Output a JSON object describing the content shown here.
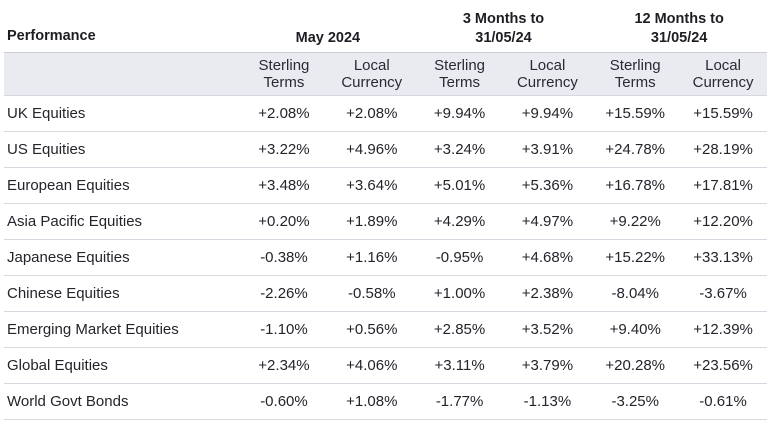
{
  "table": {
    "title": "Performance",
    "groups": [
      "May 2024",
      "3 Months to\n31/05/24",
      "12 Months to\n31/05/24"
    ],
    "subheaders": [
      [
        "Sterling",
        "Terms"
      ],
      [
        "Local",
        "Currency"
      ],
      [
        "Sterling",
        "Terms"
      ],
      [
        "Local",
        "Currency"
      ],
      [
        "Sterling",
        "Terms"
      ],
      [
        "Local",
        "Currency"
      ]
    ],
    "rows": [
      {
        "label": "UK Equities",
        "values": [
          "+2.08%",
          "+2.08%",
          "+9.94%",
          "+9.94%",
          "+15.59%",
          "+15.59%"
        ]
      },
      {
        "label": "US Equities",
        "values": [
          "+3.22%",
          "+4.96%",
          "+3.24%",
          "+3.91%",
          "+24.78%",
          "+28.19%"
        ]
      },
      {
        "label": "European Equities",
        "values": [
          "+3.48%",
          "+3.64%",
          "+5.01%",
          "+5.36%",
          "+16.78%",
          "+17.81%"
        ]
      },
      {
        "label": "Asia Pacific Equities",
        "values": [
          "+0.20%",
          "+1.89%",
          "+4.29%",
          "+4.97%",
          "+9.22%",
          "+12.20%"
        ]
      },
      {
        "label": "Japanese Equities",
        "values": [
          "-0.38%",
          "+1.16%",
          "-0.95%",
          "+4.68%",
          "+15.22%",
          "+33.13%"
        ]
      },
      {
        "label": "Chinese Equities",
        "values": [
          "-2.26%",
          "-0.58%",
          "+1.00%",
          "+2.38%",
          "-8.04%",
          "-3.67%"
        ]
      },
      {
        "label": "Emerging Market Equities",
        "values": [
          "-1.10%",
          "+0.56%",
          "+2.85%",
          "+3.52%",
          "+9.40%",
          "+12.39%"
        ]
      },
      {
        "label": "Global Equities",
        "values": [
          "+2.34%",
          "+4.06%",
          "+3.11%",
          "+3.79%",
          "+20.28%",
          "+23.56%"
        ]
      },
      {
        "label": "World Govt Bonds",
        "values": [
          "-0.60%",
          "+1.08%",
          "-1.77%",
          "-1.13%",
          "-3.25%",
          "-0.61%"
        ]
      }
    ]
  }
}
